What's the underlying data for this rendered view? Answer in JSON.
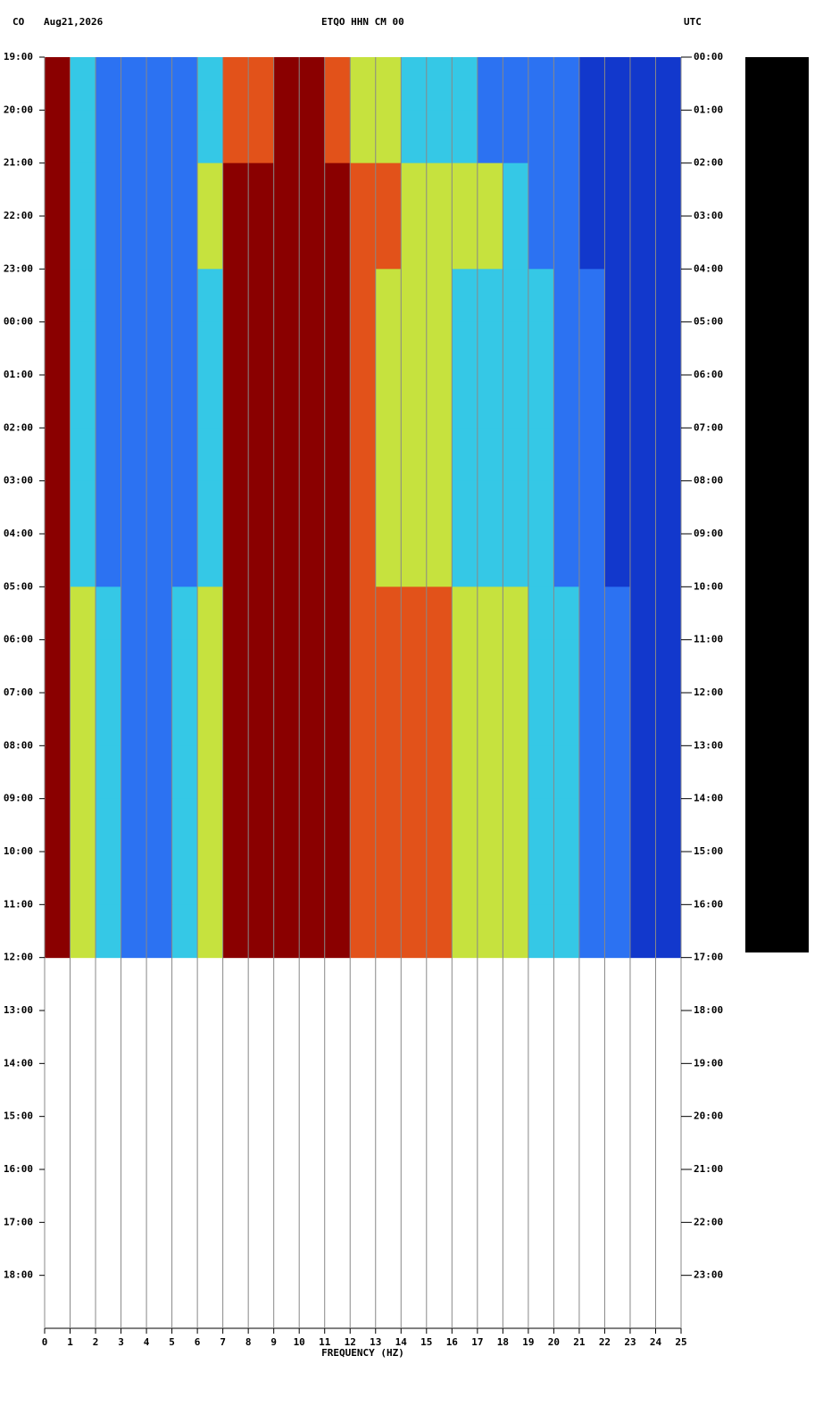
{
  "header": {
    "network": "CO",
    "date": "Aug21,2026",
    "station": "ETQO HHN CM 00",
    "timezone": "UTC"
  },
  "chart_data": {
    "type": "heatmap",
    "xlabel": "FREQUENCY (HZ)",
    "xlim": [
      0,
      25
    ],
    "xticks": [
      0,
      1,
      2,
      3,
      4,
      5,
      6,
      7,
      8,
      9,
      10,
      11,
      12,
      13,
      14,
      15,
      16,
      17,
      18,
      19,
      20,
      21,
      22,
      23,
      24,
      25
    ],
    "ylim": [
      0,
      24
    ],
    "yticks": [
      {
        "value": 0,
        "label": "19:00"
      },
      {
        "value": 1,
        "label": "20:00"
      },
      {
        "value": 2,
        "label": "21:00"
      },
      {
        "value": 3,
        "label": "22:00"
      },
      {
        "value": 4,
        "label": "23:00"
      },
      {
        "value": 5,
        "label": "00:00"
      },
      {
        "value": 6,
        "label": "01:00"
      },
      {
        "value": 7,
        "label": "02:00"
      },
      {
        "value": 8,
        "label": "03:00"
      },
      {
        "value": 9,
        "label": "04:00"
      },
      {
        "value": 10,
        "label": "05:00"
      },
      {
        "value": 11,
        "label": "06:00"
      },
      {
        "value": 12,
        "label": "07:00"
      },
      {
        "value": 13,
        "label": "08:00"
      },
      {
        "value": 14,
        "label": "09:00"
      },
      {
        "value": 15,
        "label": "10:00"
      },
      {
        "value": 16,
        "label": "11:00"
      },
      {
        "value": 17,
        "label": "12:00"
      },
      {
        "value": 18,
        "label": "13:00"
      },
      {
        "value": 19,
        "label": "14:00"
      },
      {
        "value": 20,
        "label": "15:00"
      },
      {
        "value": 21,
        "label": "16:00"
      },
      {
        "value": 22,
        "label": "17:00"
      },
      {
        "value": 23,
        "label": "18:00"
      }
    ],
    "y2ticks": [
      {
        "value": 0,
        "label": "00:00"
      },
      {
        "value": 1,
        "label": "01:00"
      },
      {
        "value": 2,
        "label": "02:00"
      },
      {
        "value": 3,
        "label": "03:00"
      },
      {
        "value": 4,
        "label": "04:00"
      },
      {
        "value": 5,
        "label": "05:00"
      },
      {
        "value": 6,
        "label": "06:00"
      },
      {
        "value": 7,
        "label": "07:00"
      },
      {
        "value": 8,
        "label": "08:00"
      },
      {
        "value": 9,
        "label": "09:00"
      },
      {
        "value": 10,
        "label": "10:00"
      },
      {
        "value": 11,
        "label": "11:00"
      },
      {
        "value": 12,
        "label": "12:00"
      },
      {
        "value": 13,
        "label": "13:00"
      },
      {
        "value": 14,
        "label": "14:00"
      },
      {
        "value": 15,
        "label": "15:00"
      },
      {
        "value": 16,
        "label": "16:00"
      },
      {
        "value": 17,
        "label": "17:00"
      },
      {
        "value": 18,
        "label": "18:00"
      },
      {
        "value": 19,
        "label": "19:00"
      },
      {
        "value": 20,
        "label": "20:00"
      },
      {
        "value": 21,
        "label": "21:00"
      },
      {
        "value": 22,
        "label": "22:00"
      },
      {
        "value": 23,
        "label": "23:00"
      }
    ],
    "colorscale": [
      "#1238cc",
      "#2c72f2",
      "#35c8e6",
      "#c6e23e",
      "#e2521a",
      "#8a0000"
    ],
    "z": [
      [
        5,
        2,
        1,
        1,
        1,
        1,
        2,
        4,
        4,
        5,
        5,
        4,
        3,
        3,
        2,
        2,
        2,
        1,
        1,
        1,
        1,
        0,
        0,
        0,
        0
      ],
      [
        5,
        2,
        1,
        1,
        1,
        1,
        2,
        4,
        4,
        5,
        5,
        4,
        3,
        3,
        2,
        2,
        2,
        1,
        1,
        1,
        1,
        0,
        0,
        0,
        0
      ],
      [
        5,
        2,
        1,
        1,
        1,
        1,
        3,
        5,
        5,
        5,
        5,
        5,
        4,
        4,
        3,
        3,
        3,
        3,
        2,
        1,
        1,
        0,
        0,
        0,
        0
      ],
      [
        5,
        2,
        1,
        1,
        1,
        1,
        3,
        5,
        5,
        5,
        5,
        5,
        4,
        4,
        3,
        3,
        3,
        3,
        2,
        1,
        1,
        0,
        0,
        0,
        0
      ],
      [
        5,
        2,
        1,
        1,
        1,
        1,
        2,
        5,
        5,
        5,
        5,
        5,
        4,
        3,
        3,
        3,
        2,
        2,
        2,
        2,
        1,
        1,
        0,
        0,
        0
      ],
      [
        5,
        2,
        1,
        1,
        1,
        1,
        2,
        5,
        5,
        5,
        5,
        5,
        4,
        3,
        3,
        3,
        2,
        2,
        2,
        2,
        1,
        1,
        0,
        0,
        0
      ],
      [
        5,
        2,
        1,
        1,
        1,
        1,
        2,
        5,
        5,
        5,
        5,
        5,
        4,
        3,
        3,
        3,
        2,
        2,
        2,
        2,
        1,
        1,
        0,
        0,
        0
      ],
      [
        5,
        2,
        1,
        1,
        1,
        1,
        2,
        5,
        5,
        5,
        5,
        5,
        4,
        3,
        3,
        3,
        2,
        2,
        2,
        2,
        1,
        1,
        0,
        0,
        0
      ],
      [
        5,
        2,
        1,
        1,
        1,
        1,
        2,
        5,
        5,
        5,
        5,
        5,
        4,
        3,
        3,
        3,
        2,
        2,
        2,
        2,
        1,
        1,
        0,
        0,
        0
      ],
      [
        5,
        2,
        1,
        1,
        1,
        1,
        2,
        5,
        5,
        5,
        5,
        5,
        4,
        3,
        3,
        3,
        2,
        2,
        2,
        2,
        1,
        1,
        0,
        0,
        0
      ],
      [
        5,
        3,
        2,
        1,
        1,
        2,
        3,
        5,
        5,
        5,
        5,
        5,
        4,
        4,
        4,
        4,
        3,
        3,
        3,
        2,
        2,
        1,
        1,
        0,
        0
      ],
      [
        5,
        3,
        2,
        1,
        1,
        2,
        3,
        5,
        5,
        5,
        5,
        5,
        4,
        4,
        4,
        4,
        3,
        3,
        3,
        2,
        2,
        1,
        1,
        0,
        0
      ],
      [
        5,
        3,
        2,
        1,
        1,
        2,
        3,
        5,
        5,
        5,
        5,
        5,
        4,
        4,
        4,
        4,
        3,
        3,
        3,
        2,
        2,
        1,
        1,
        0,
        0
      ],
      [
        5,
        3,
        2,
        1,
        1,
        2,
        3,
        5,
        5,
        5,
        5,
        5,
        4,
        4,
        4,
        4,
        3,
        3,
        3,
        2,
        2,
        1,
        1,
        0,
        0
      ],
      [
        5,
        3,
        2,
        1,
        1,
        2,
        3,
        5,
        5,
        5,
        5,
        5,
        4,
        4,
        4,
        4,
        3,
        3,
        3,
        2,
        2,
        1,
        1,
        0,
        0
      ],
      [
        5,
        3,
        2,
        1,
        1,
        2,
        3,
        5,
        5,
        5,
        5,
        5,
        4,
        4,
        4,
        4,
        3,
        3,
        3,
        2,
        2,
        1,
        1,
        0,
        0
      ],
      [
        5,
        3,
        2,
        1,
        1,
        2,
        3,
        5,
        5,
        5,
        5,
        5,
        4,
        4,
        4,
        4,
        3,
        3,
        3,
        2,
        2,
        1,
        1,
        0,
        0
      ]
    ]
  }
}
